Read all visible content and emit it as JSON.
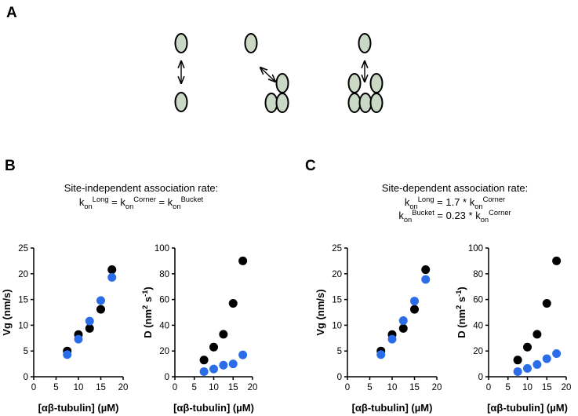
{
  "panel_labels": [
    "A",
    "B",
    "C"
  ],
  "headers": [
    {
      "title": "Site-independent association rate:",
      "equations": [
        [
          {
            "base": "k",
            "sub": "on",
            "sup": "Long"
          },
          " = ",
          {
            "base": "k",
            "sub": "on",
            "sup": "Corner"
          },
          " = ",
          {
            "base": "k",
            "sub": "on",
            "sup": "Bucket"
          }
        ]
      ]
    },
    {
      "title": "Site-dependent association rate:",
      "equations": [
        [
          {
            "base": "k",
            "sub": "on",
            "sup": "Long"
          },
          " = 1.7 * ",
          {
            "base": "k",
            "sub": "on",
            "sup": "Corner"
          }
        ],
        [
          {
            "base": "k",
            "sub": "on",
            "sup": "Bucket"
          },
          " = 0.23 * ",
          {
            "base": "k",
            "sub": "on",
            "sup": "Corner"
          }
        ]
      ]
    }
  ],
  "chart_data": [
    {
      "type": "scatter",
      "xlabel": "[αβ-tubulin] (µM)",
      "ylabel": "Vg (nm/s)",
      "xlim": [
        0,
        20
      ],
      "xticks": [
        0,
        5,
        10,
        15,
        20
      ],
      "ylim": [
        0,
        25
      ],
      "yticks": [
        0,
        5,
        10,
        15,
        20,
        25
      ],
      "series": [
        {
          "color": "#000000",
          "x": [
            7.5,
            10,
            12.5,
            15,
            17.5
          ],
          "values": [
            5.0,
            8.2,
            9.4,
            13.1,
            20.8
          ]
        },
        {
          "color": "#2b6de8",
          "x": [
            7.5,
            10,
            12.5,
            15,
            17.5
          ],
          "values": [
            4.3,
            7.3,
            10.8,
            14.8,
            19.3
          ]
        }
      ]
    },
    {
      "type": "scatter",
      "xlabel": "[αβ-tubulin] (µM)",
      "ylabel": [
        "D (nm",
        {
          "sup": "2"
        },
        " s",
        {
          "sup": "-1"
        },
        ")"
      ],
      "xlim": [
        0,
        20
      ],
      "xticks": [
        0,
        5,
        10,
        15,
        20
      ],
      "ylim": [
        0,
        100
      ],
      "yticks": [
        0,
        20,
        40,
        60,
        80,
        100
      ],
      "series": [
        {
          "color": "#000000",
          "x": [
            7.5,
            10,
            12.5,
            15,
            17.5
          ],
          "values": [
            13,
            23,
            33,
            57,
            90
          ]
        },
        {
          "color": "#2b6de8",
          "x": [
            7.5,
            10,
            12.5,
            15,
            17.5
          ],
          "values": [
            4,
            6,
            9,
            10,
            17
          ]
        }
      ]
    },
    {
      "type": "scatter",
      "xlabel": "[αβ-tubulin] (µM)",
      "ylabel": "Vg (nm/s)",
      "xlim": [
        0,
        20
      ],
      "xticks": [
        0,
        5,
        10,
        15,
        20
      ],
      "ylim": [
        0,
        25
      ],
      "yticks": [
        0,
        5,
        10,
        15,
        20,
        25
      ],
      "series": [
        {
          "color": "#000000",
          "x": [
            7.5,
            10,
            12.5,
            15,
            17.5
          ],
          "values": [
            5.0,
            8.2,
            9.4,
            13.1,
            20.8
          ]
        },
        {
          "color": "#2b6de8",
          "x": [
            7.5,
            10,
            12.5,
            15,
            17.5
          ],
          "values": [
            4.3,
            7.3,
            10.9,
            14.7,
            18.9
          ]
        }
      ]
    },
    {
      "type": "scatter",
      "xlabel": "[αβ-tubulin] (µM)",
      "ylabel": [
        "D (nm",
        {
          "sup": "2"
        },
        " s",
        {
          "sup": "-1"
        },
        ")"
      ],
      "xlim": [
        0,
        20
      ],
      "xticks": [
        0,
        5,
        10,
        15,
        20
      ],
      "ylim": [
        0,
        100
      ],
      "yticks": [
        0,
        20,
        40,
        60,
        80,
        100
      ],
      "series": [
        {
          "color": "#000000",
          "x": [
            7.5,
            10,
            12.5,
            15,
            17.5
          ],
          "values": [
            13,
            23,
            33,
            57,
            90
          ]
        },
        {
          "color": "#2b6de8",
          "x": [
            7.5,
            10,
            12.5,
            15,
            17.5
          ],
          "values": [
            4,
            6.5,
            9.5,
            14,
            18
          ]
        }
      ]
    }
  ]
}
